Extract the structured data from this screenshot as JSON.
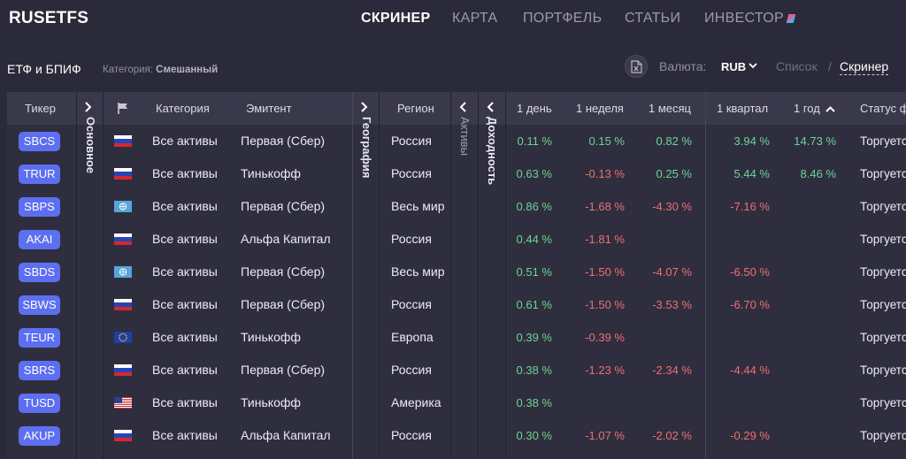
{
  "app": {
    "logo": "RUSETFS"
  },
  "nav": {
    "items": [
      {
        "label": "СКРИНЕР",
        "active": true
      },
      {
        "label": "КАРТА",
        "active": false
      },
      {
        "label": "ПОРТФЕЛЬ",
        "active": false
      },
      {
        "label": "СТАТЬИ",
        "active": false
      },
      {
        "label": "ИНВЕСТОР",
        "active": false
      }
    ]
  },
  "subheader": {
    "title": "ЕТФ и БПИФ",
    "category_label": "Категория:",
    "category_value": "Смешанный",
    "currency_label": "Валюта:",
    "currency_value": "RUB",
    "view_list": "Список",
    "view_sep": "/",
    "view_screener": "Скринер"
  },
  "table": {
    "headers": {
      "ticker": "Тикер",
      "category": "Категория",
      "issuer": "Эмитент",
      "region": "Регион",
      "d1": "1 день",
      "w1": "1 неделя",
      "m1": "1 месяц",
      "q1": "1 квартал",
      "y1": "1 год",
      "status": "Статус ф"
    },
    "groups": {
      "main": "Основное",
      "geo": "География",
      "assets": "Активы",
      "returns": "Доходность"
    },
    "rows": [
      {
        "ticker": "SBCS",
        "flag": "ru",
        "category": "Все активы",
        "issuer": "Первая (Сбер)",
        "region": "Россия",
        "d1": "0.11 %",
        "w1": "0.15 %",
        "m1": "0.82 %",
        "q1": "3.94 %",
        "y1": "14.73 %",
        "status": "Торгуется"
      },
      {
        "ticker": "TRUR",
        "flag": "ru",
        "category": "Все активы",
        "issuer": "Тинькофф",
        "region": "Россия",
        "d1": "0.63 %",
        "w1": "-0.13 %",
        "m1": "0.25 %",
        "q1": "5.44 %",
        "y1": "8.46 %",
        "status": "Торгуется"
      },
      {
        "ticker": "SBPS",
        "flag": "world",
        "category": "Все активы",
        "issuer": "Первая (Сбер)",
        "region": "Весь мир",
        "d1": "0.86 %",
        "w1": "-1.68 %",
        "m1": "-4.30 %",
        "q1": "-7.16 %",
        "y1": "",
        "status": "Торгуется"
      },
      {
        "ticker": "AKAI",
        "flag": "ru",
        "category": "Все активы",
        "issuer": "Альфа Капитал",
        "region": "Россия",
        "d1": "0.44 %",
        "w1": "-1.81 %",
        "m1": "",
        "q1": "",
        "y1": "",
        "status": "Торгуется"
      },
      {
        "ticker": "SBDS",
        "flag": "world",
        "category": "Все активы",
        "issuer": "Первая (Сбер)",
        "region": "Весь мир",
        "d1": "0.51 %",
        "w1": "-1.50 %",
        "m1": "-4.07 %",
        "q1": "-6.50 %",
        "y1": "",
        "status": "Торгуется"
      },
      {
        "ticker": "SBWS",
        "flag": "ru",
        "category": "Все активы",
        "issuer": "Первая (Сбер)",
        "region": "Россия",
        "d1": "0.61 %",
        "w1": "-1.50 %",
        "m1": "-3.53 %",
        "q1": "-6.70 %",
        "y1": "",
        "status": "Торгуется"
      },
      {
        "ticker": "TEUR",
        "flag": "eu",
        "category": "Все активы",
        "issuer": "Тинькофф",
        "region": "Европа",
        "d1": "0.39 %",
        "w1": "-0.39 %",
        "m1": "",
        "q1": "",
        "y1": "",
        "status": "Торгуется"
      },
      {
        "ticker": "SBRS",
        "flag": "ru",
        "category": "Все активы",
        "issuer": "Первая (Сбер)",
        "region": "Россия",
        "d1": "0.38 %",
        "w1": "-1.23 %",
        "m1": "-2.34 %",
        "q1": "-4.44 %",
        "y1": "",
        "status": "Торгуется"
      },
      {
        "ticker": "TUSD",
        "flag": "us",
        "category": "Все активы",
        "issuer": "Тинькофф",
        "region": "Америка",
        "d1": "0.38 %",
        "w1": "",
        "m1": "",
        "q1": "",
        "y1": "",
        "status": "Торгуется"
      },
      {
        "ticker": "AKUP",
        "flag": "ru",
        "category": "Все активы",
        "issuer": "Альфа Капитал",
        "region": "Россия",
        "d1": "0.30 %",
        "w1": "-1.07 %",
        "m1": "-2.02 %",
        "q1": "-0.29 %",
        "y1": "",
        "status": "Торгуется"
      }
    ]
  },
  "colors": {
    "background": "#2b2a3a",
    "header_bg": "#3a394c",
    "ticker_badge": "#5d6ff0",
    "positive": "#6cd58e",
    "negative": "#ee6f70"
  }
}
